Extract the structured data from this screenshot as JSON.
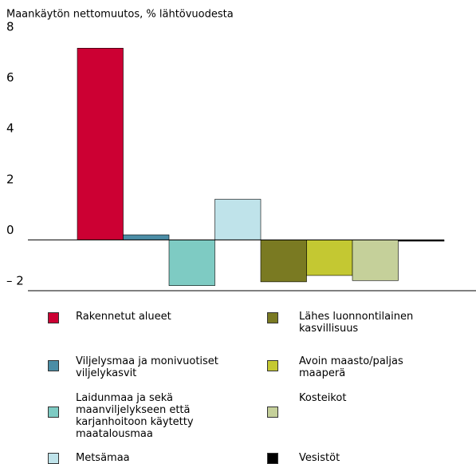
{
  "chart_data": {
    "type": "bar",
    "title": "Maankäytön nettomuutos, % lähtövuodesta",
    "ylim": [
      -2,
      8
    ],
    "yticks": [
      {
        "value": -2,
        "label": "– 2"
      },
      0,
      2,
      4,
      6,
      8
    ],
    "series": [
      {
        "name": "Rakennetut alueet",
        "color": "#cc0033",
        "values": [
          7.55
        ]
      },
      {
        "name": "Viljelysmaa ja monivuotiset viljelykasvit",
        "color": "#4b8da6",
        "values": [
          0.2
        ]
      },
      {
        "name": "Laidunmaa ja sekä maanviljelykseen että karjanhoitoon käytetty maatalousmaa",
        "color": "#7ecbc3",
        "values": [
          -1.8
        ]
      },
      {
        "name": "Metsämaa",
        "color": "#bfe3ea",
        "values": [
          1.6
        ]
      },
      {
        "name": "Lähes luonnontilainen kasvillisuus",
        "color": "#7a7a22",
        "values": [
          -1.65
        ]
      },
      {
        "name": "Avoin maasto/paljas maaperä",
        "color": "#c4c832",
        "values": [
          -1.4
        ]
      },
      {
        "name": "Kosteikot",
        "color": "#c5d09a",
        "values": [
          -1.6
        ]
      },
      {
        "name": "Vesistöt",
        "color": "#000000",
        "values": [
          -0.05
        ]
      }
    ]
  }
}
